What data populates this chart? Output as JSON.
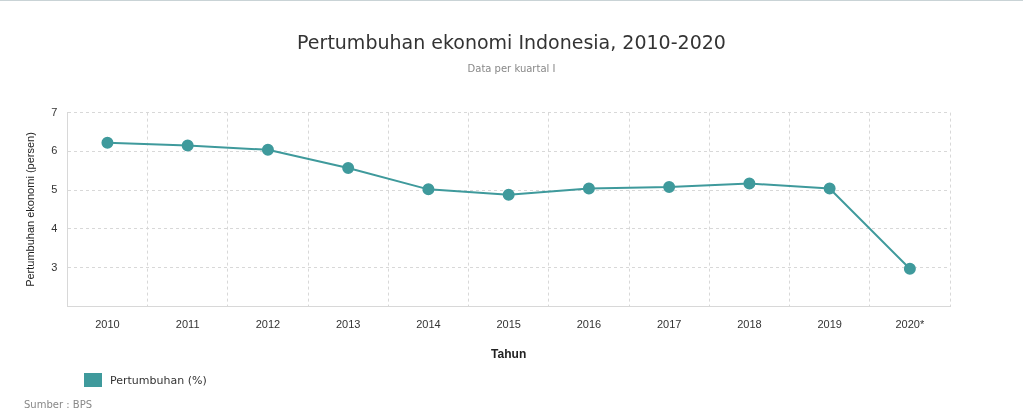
{
  "chart_data": {
    "type": "line",
    "title": "Pertumbuhan ekonomi Indonesia, 2010-2020",
    "subtitle": "Data per kuartal I",
    "xlabel": "Tahun",
    "ylabel": "Pertumbuhan ekonomi (persen)",
    "categories": [
      "2010",
      "2011",
      "2012",
      "2013",
      "2014",
      "2015",
      "2016",
      "2017",
      "2018",
      "2019",
      "2020*"
    ],
    "series": [
      {
        "name": "Pertumbuhan (%)",
        "color": "#3f9a9c",
        "values": [
          6.22,
          6.15,
          6.04,
          5.57,
          5.02,
          4.88,
          5.04,
          5.08,
          5.17,
          5.04,
          2.97
        ]
      }
    ],
    "ylim": [
      2,
      7
    ],
    "yticks": [
      3,
      4,
      5,
      6,
      7
    ],
    "grid": true,
    "legend": "bottom left",
    "marker": "circle",
    "line_style": "solid",
    "annotations": [
      "Sumber : BPS"
    ]
  }
}
